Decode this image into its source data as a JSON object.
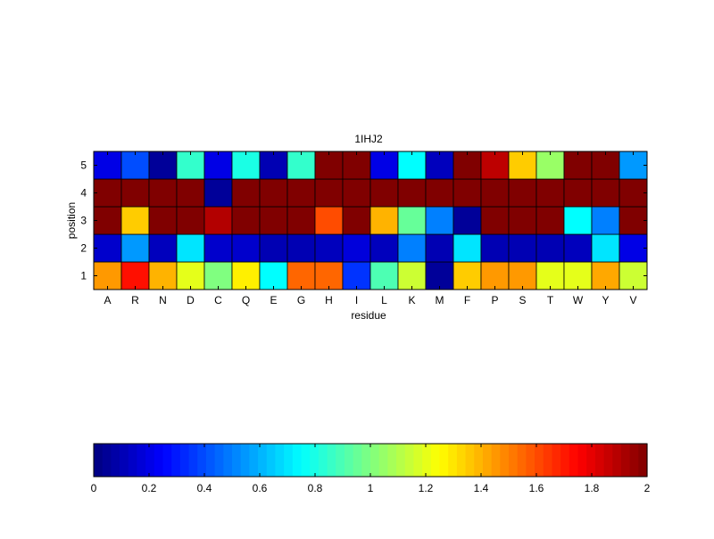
{
  "chart_data": {
    "type": "heatmap",
    "title": "1IHJ2",
    "xlabel": "residue",
    "ylabel": "position",
    "x_categories": [
      "A",
      "R",
      "N",
      "D",
      "C",
      "Q",
      "E",
      "G",
      "H",
      "I",
      "L",
      "K",
      "M",
      "F",
      "P",
      "S",
      "T",
      "W",
      "Y",
      "V"
    ],
    "y_categories": [
      "1",
      "2",
      "3",
      "4",
      "5"
    ],
    "values": [
      [
        1.45,
        1.72,
        1.4,
        1.2,
        1.0,
        1.28,
        0.75,
        1.55,
        1.55,
        0.35,
        0.9,
        1.15,
        0.05,
        1.35,
        1.45,
        1.45,
        1.2,
        1.2,
        1.42,
        1.15
      ],
      [
        0.15,
        0.55,
        0.12,
        0.7,
        0.15,
        0.15,
        0.1,
        0.1,
        0.12,
        0.18,
        0.12,
        0.5,
        0.1,
        0.7,
        0.1,
        0.1,
        0.1,
        0.12,
        0.7,
        0.2
      ],
      [
        2.0,
        1.35,
        2.0,
        2.0,
        1.9,
        2.0,
        2.0,
        2.0,
        1.6,
        2.0,
        1.4,
        0.95,
        0.5,
        0.05,
        2.0,
        2.0,
        2.0,
        0.75,
        0.5,
        2.0
      ],
      [
        2.0,
        2.0,
        2.0,
        2.0,
        0.05,
        2.0,
        2.0,
        2.0,
        2.0,
        2.0,
        2.0,
        2.0,
        2.0,
        2.0,
        2.0,
        2.0,
        2.0,
        2.0,
        2.0,
        2.0
      ],
      [
        0.2,
        0.4,
        0.05,
        0.85,
        0.2,
        0.8,
        0.1,
        0.85,
        2.0,
        2.0,
        0.2,
        0.75,
        0.12,
        2.0,
        1.88,
        1.35,
        1.05,
        2.0,
        2.0,
        0.55
      ]
    ],
    "colorbar": {
      "colormap": "jet",
      "range": [
        0,
        2
      ],
      "tick_labels": [
        "0",
        "0.2",
        "0.4",
        "0.6",
        "0.8",
        "1",
        "1.2",
        "1.4",
        "1.6",
        "1.8",
        "2"
      ]
    },
    "grid": false,
    "legend": "colorbar-bottom"
  }
}
